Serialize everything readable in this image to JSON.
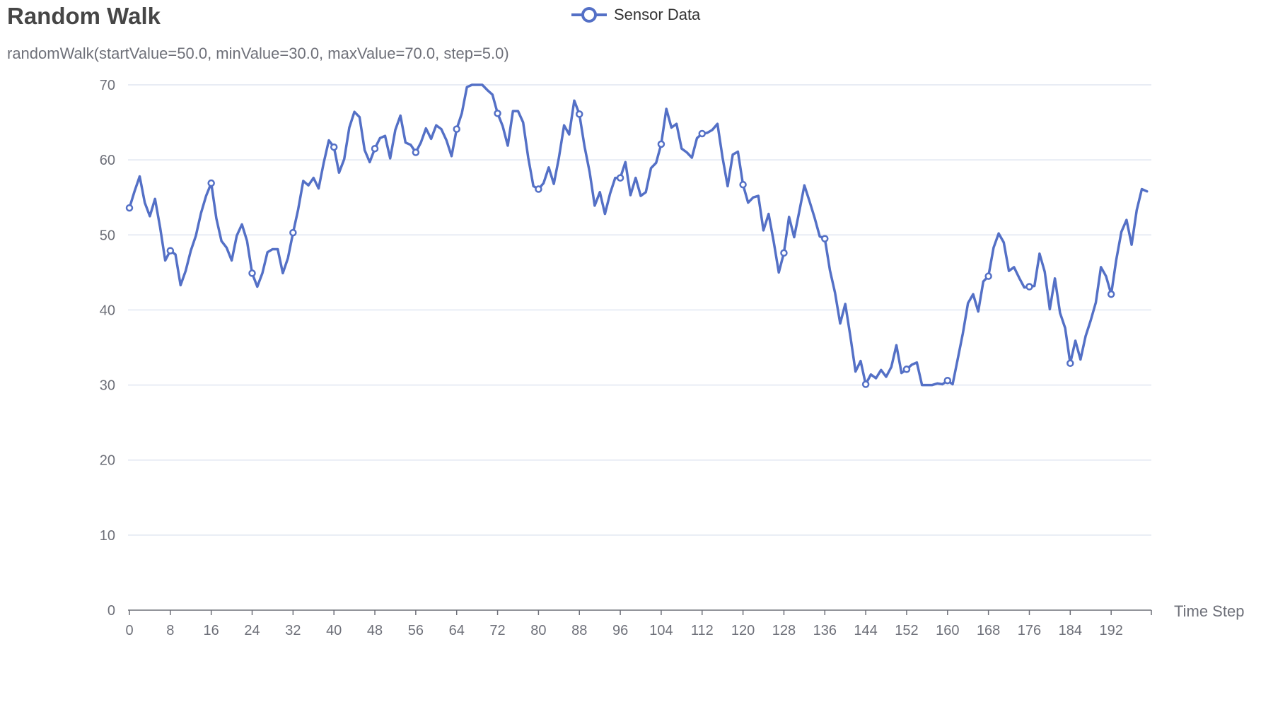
{
  "chart_data": {
    "type": "line",
    "title": "Random Walk",
    "subtitle": "randomWalk(startValue=50.0, minValue=30.0, maxValue=70.0, step=5.0)",
    "xlabel": "Time Step",
    "ylabel": "",
    "ylim": [
      0,
      70
    ],
    "yticks": [
      0,
      10,
      20,
      30,
      40,
      50,
      60,
      70
    ],
    "xlim": [
      0,
      200
    ],
    "xticks": [
      0,
      8,
      16,
      24,
      32,
      40,
      48,
      56,
      64,
      72,
      80,
      88,
      96,
      104,
      112,
      120,
      128,
      136,
      144,
      152,
      160,
      168,
      176,
      184,
      192
    ],
    "grid": true,
    "legend_position": "top-center",
    "series": [
      {
        "name": "Sensor Data",
        "color": "#5470c6",
        "symbol_interval": 8,
        "values": [
          53.6,
          55.8,
          57.8,
          54.3,
          52.5,
          54.8,
          51.0,
          46.6,
          47.9,
          47.4,
          43.3,
          45.2,
          47.9,
          49.9,
          52.9,
          55.2,
          56.9,
          52.2,
          49.2,
          48.3,
          46.6,
          49.9,
          51.4,
          49.2,
          44.9,
          43.1,
          44.9,
          47.7,
          48.1,
          48.1,
          44.9,
          46.9,
          50.3,
          53.4,
          57.2,
          56.6,
          57.6,
          56.2,
          59.6,
          62.6,
          61.7,
          58.3,
          60.1,
          64.3,
          66.4,
          65.7,
          61.3,
          59.7,
          61.5,
          62.9,
          63.2,
          60.2,
          64.0,
          65.9,
          62.3,
          62.0,
          61.0,
          62.3,
          64.2,
          62.8,
          64.6,
          64.1,
          62.6,
          60.5,
          64.1,
          66.2,
          69.7,
          70.0,
          70.0,
          70.0,
          69.3,
          68.7,
          66.2,
          64.5,
          61.9,
          66.5,
          66.5,
          65.0,
          60.3,
          56.5,
          56.1,
          56.9,
          59.0,
          56.8,
          60.3,
          64.6,
          63.4,
          67.9,
          66.1,
          61.8,
          58.4,
          53.9,
          55.7,
          52.8,
          55.5,
          57.6,
          57.6,
          59.7,
          55.3,
          57.6,
          55.2,
          55.7,
          58.9,
          59.6,
          62.1,
          66.8,
          64.3,
          64.8,
          61.5,
          61.0,
          60.3,
          62.9,
          63.5,
          63.6,
          64.0,
          64.8,
          60.3,
          56.5,
          60.7,
          61.1,
          56.7,
          54.3,
          55.0,
          55.2,
          50.6,
          52.8,
          49.1,
          45.0,
          47.6,
          52.4,
          49.7,
          53.1,
          56.6,
          54.5,
          52.3,
          49.8,
          49.5,
          45.3,
          42.3,
          38.2,
          40.8,
          36.5,
          31.8,
          33.2,
          30.1,
          31.4,
          30.9,
          32.0,
          31.1,
          32.4,
          35.3,
          31.6,
          32.1,
          32.7,
          33.0,
          30.0,
          30.0,
          30.0,
          30.2,
          30.1,
          30.6,
          30.1,
          33.5,
          36.9,
          40.9,
          42.1,
          39.8,
          43.8,
          44.5,
          48.3,
          50.2,
          49.0,
          45.2,
          45.7,
          44.3,
          43.0,
          43.1,
          43.2,
          47.5,
          45.1,
          40.1,
          44.2,
          39.6,
          37.6,
          32.9,
          35.9,
          33.4,
          36.5,
          38.6,
          41.0,
          45.7,
          44.5,
          42.1,
          46.7,
          50.4,
          52.0,
          48.7,
          53.3,
          56.1,
          55.8
        ]
      }
    ]
  }
}
